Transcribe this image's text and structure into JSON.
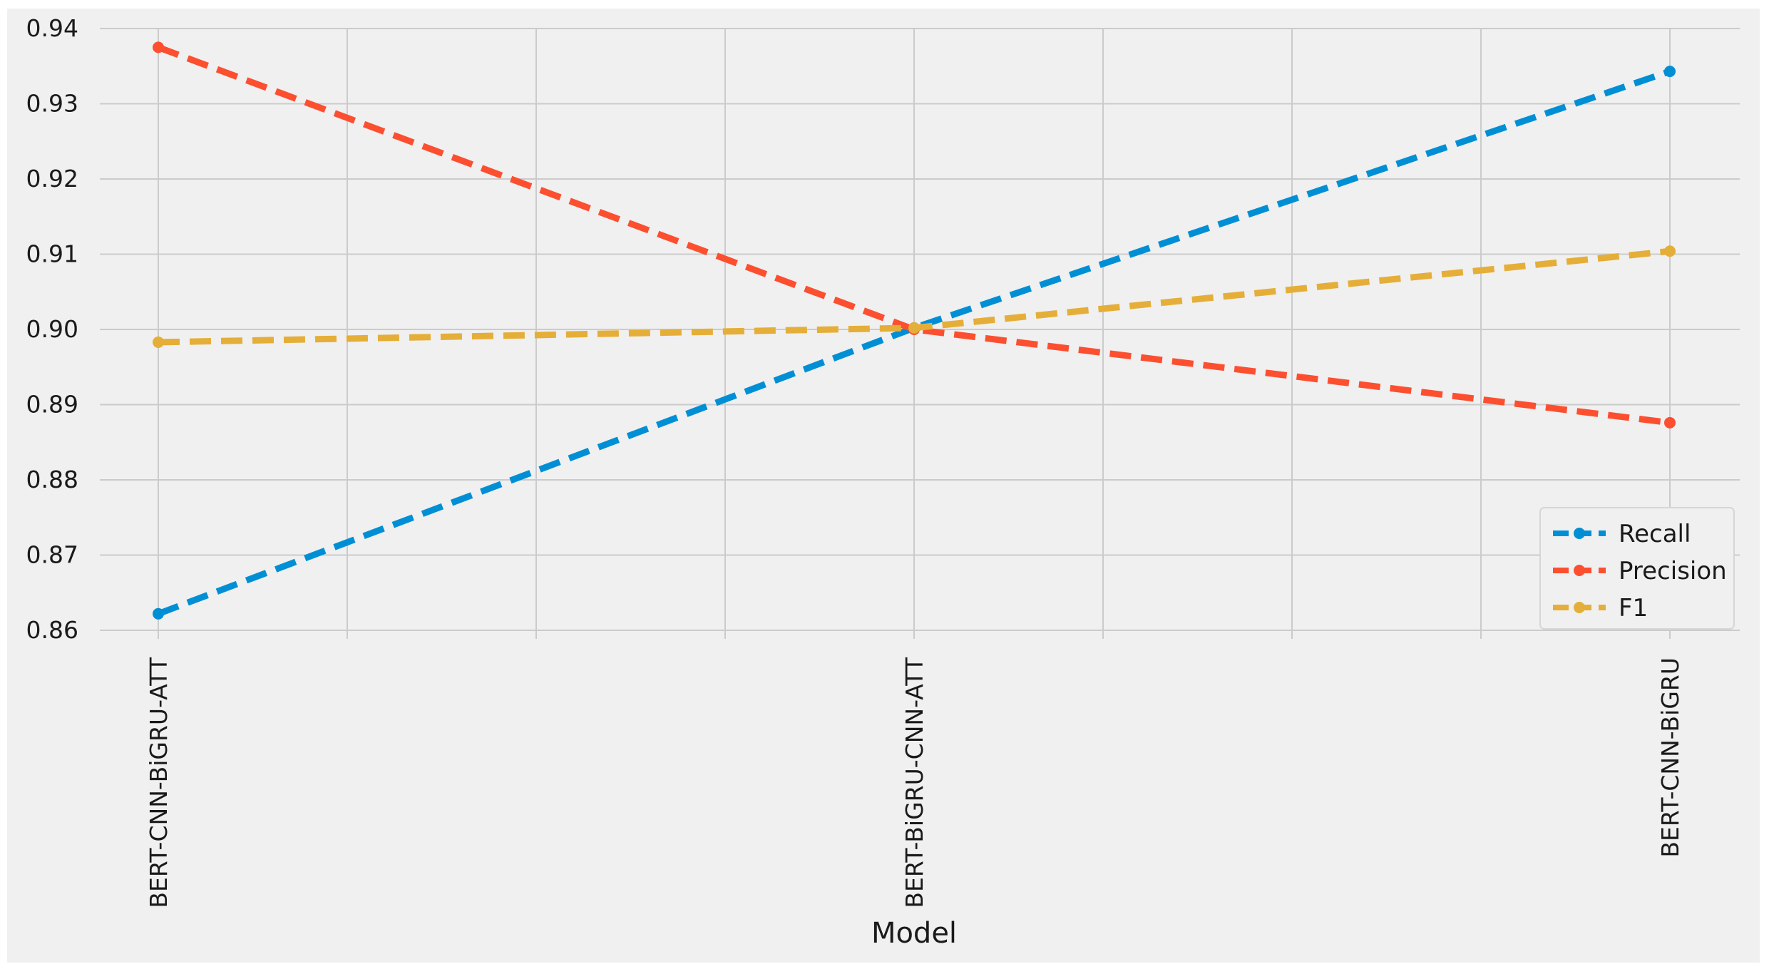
{
  "chart_data": {
    "type": "line",
    "xlabel": "Model",
    "ylabel": "",
    "categories": [
      "BERT-CNN-BiGRU-ATT",
      "BERT-BiGRU-CNN-ATT",
      "BERT-CNN-BiGRU"
    ],
    "ylim": [
      0.86,
      0.94
    ],
    "yticks": [
      "0.86",
      "0.87",
      "0.88",
      "0.89",
      "0.90",
      "0.91",
      "0.92",
      "0.93",
      "0.94"
    ],
    "grid": true,
    "legend_position": "lower-right",
    "line_style": "dashed",
    "marker": "circle",
    "series": [
      {
        "name": "Recall",
        "color": "#008fd5",
        "values": [
          0.8622,
          0.9002,
          0.9343
        ]
      },
      {
        "name": "Precision",
        "color": "#fc4f30",
        "values": [
          0.9375,
          0.9,
          0.8876
        ]
      },
      {
        "name": "F1",
        "color": "#e5ae38",
        "values": [
          0.8983,
          0.9002,
          0.9104
        ]
      }
    ]
  }
}
